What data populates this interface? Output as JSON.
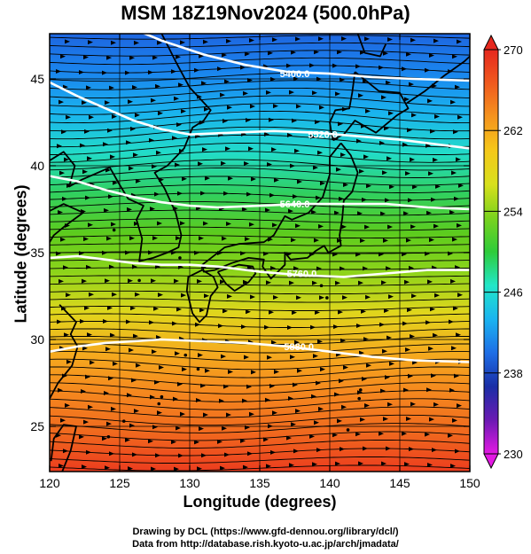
{
  "title": "MSM 18Z19Nov2024 (500.0hPa)",
  "xlabel": "Longitude (degrees)",
  "ylabel": "Latitude  (degrees)",
  "credits": [
    "Drawing by DCL (https://www.gfd-dennou.org/library/dcl/)",
    "Data from http://database.rish.kyoto-u.ac.jp/arch/jmadata/"
  ],
  "map": {
    "lon_range": [
      120,
      150
    ],
    "lat_range": [
      22.4,
      47.6
    ],
    "x_ticks": [
      120,
      125,
      130,
      135,
      140,
      145,
      150
    ],
    "x_tick_labels": [
      "120",
      "125",
      "130",
      "135",
      "140",
      "145",
      "150"
    ],
    "y_ticks": [
      25,
      30,
      35,
      40,
      45
    ],
    "y_tick_labels": [
      "25",
      "30",
      "35",
      "40",
      "45"
    ],
    "colorbar": {
      "min": 230,
      "max": 270,
      "ticks": [
        230,
        238,
        246,
        254,
        262,
        270
      ],
      "tick_labels": [
        "230",
        "238",
        "246",
        "254",
        "262",
        "270"
      ],
      "colors": [
        "#e31ae3",
        "#6b1ab3",
        "#1a2ea6",
        "#1e6ee6",
        "#1ab4f0",
        "#22e6c8",
        "#2ecc3a",
        "#7ad21e",
        "#d8e01c",
        "#f5c81a",
        "#f5941e",
        "#f05a1e",
        "#e6281e"
      ]
    },
    "contours": [
      {
        "label": "5400.0",
        "label_lon": 137.5,
        "label_lat": 45.3,
        "points": [
          [
            125.6,
            48
          ],
          [
            128,
            47.2
          ],
          [
            131,
            46.4
          ],
          [
            134,
            45.8
          ],
          [
            137,
            45.4
          ],
          [
            140,
            45.3
          ],
          [
            143,
            45.1
          ],
          [
            146,
            45.0
          ],
          [
            150,
            44.9
          ]
        ]
      },
      {
        "label": "5520.0",
        "label_lon": 139.5,
        "label_lat": 41.8,
        "points": [
          [
            120,
            44.8
          ],
          [
            122,
            44.0
          ],
          [
            124,
            43.3
          ],
          [
            126,
            42.6
          ],
          [
            128,
            42.1
          ],
          [
            130,
            41.8
          ],
          [
            133,
            41.9
          ],
          [
            136,
            42.0
          ],
          [
            139,
            41.9
          ],
          [
            142,
            41.7
          ],
          [
            145,
            41.5
          ],
          [
            148,
            41.2
          ],
          [
            150,
            41.0
          ]
        ]
      },
      {
        "label": "5640.0",
        "label_lon": 137.5,
        "label_lat": 37.8,
        "points": [
          [
            120,
            39.4
          ],
          [
            122,
            39.1
          ],
          [
            124,
            38.6
          ],
          [
            126,
            38.2
          ],
          [
            128,
            37.9
          ],
          [
            130,
            37.7
          ],
          [
            132,
            37.6
          ],
          [
            135,
            37.7
          ],
          [
            138,
            37.8
          ],
          [
            141,
            37.8
          ],
          [
            144,
            37.8
          ],
          [
            147,
            37.6
          ],
          [
            150,
            37.5
          ]
        ]
      },
      {
        "label": "5760.0",
        "label_lon": 138.0,
        "label_lat": 33.8,
        "points": [
          [
            120,
            34.7
          ],
          [
            122,
            34.8
          ],
          [
            124,
            34.6
          ],
          [
            126,
            34.4
          ],
          [
            128,
            34.3
          ],
          [
            130,
            34.3
          ],
          [
            132,
            34.2
          ],
          [
            135,
            33.9
          ],
          [
            138,
            33.7
          ],
          [
            141,
            33.6
          ],
          [
            144,
            33.8
          ],
          [
            147,
            34.0
          ],
          [
            150,
            34.0
          ]
        ]
      },
      {
        "label": "5880.0",
        "label_lon": 137.8,
        "label_lat": 29.6,
        "points": [
          [
            120,
            29.3
          ],
          [
            122,
            29.6
          ],
          [
            124,
            29.8
          ],
          [
            126,
            29.9
          ],
          [
            128,
            30.0
          ],
          [
            131,
            29.9
          ],
          [
            134,
            29.8
          ],
          [
            137,
            29.6
          ],
          [
            140,
            29.3
          ],
          [
            143,
            29.0
          ],
          [
            146,
            28.8
          ],
          [
            150,
            28.7
          ]
        ]
      }
    ],
    "coastlines": [
      [
        [
          128.0,
          47.6
        ],
        [
          129.0,
          46.0
        ],
        [
          130.0,
          44.5
        ],
        [
          131.5,
          43.2
        ],
        [
          131.0,
          42.6
        ],
        [
          130.2,
          42.2
        ],
        [
          129.6,
          41.0
        ],
        [
          128.4,
          40.0
        ],
        [
          127.5,
          39.6
        ],
        [
          128.2,
          38.7
        ],
        [
          129.0,
          37.3
        ],
        [
          129.4,
          36.0
        ],
        [
          129.2,
          35.3
        ],
        [
          128.4,
          35.0
        ],
        [
          127.4,
          34.7
        ],
        [
          126.4,
          34.5
        ],
        [
          126.6,
          35.8
        ],
        [
          126.2,
          36.9
        ],
        [
          126.7,
          37.7
        ],
        [
          125.6,
          38.1
        ],
        [
          125.0,
          38.9
        ],
        [
          124.3,
          39.9
        ],
        [
          122.3,
          39.2
        ],
        [
          121.4,
          38.8
        ],
        [
          121.8,
          40.0
        ],
        [
          121.0,
          40.8
        ],
        [
          120.0,
          40.3
        ]
      ],
      [
        [
          120.0,
          37.4
        ],
        [
          121.0,
          37.8
        ],
        [
          122.4,
          37.3
        ],
        [
          121.2,
          36.6
        ],
        [
          120.3,
          36.0
        ],
        [
          120.0,
          35.6
        ]
      ],
      [
        [
          120.7,
          32.0
        ],
        [
          121.9,
          31.0
        ],
        [
          121.5,
          30.3
        ],
        [
          122.0,
          29.6
        ],
        [
          121.6,
          28.5
        ],
        [
          120.6,
          27.5
        ],
        [
          120.0,
          26.6
        ]
      ],
      [
        [
          120.1,
          23.0
        ],
        [
          120.3,
          24.3
        ],
        [
          121.0,
          25.1
        ],
        [
          121.9,
          25.0
        ],
        [
          121.5,
          23.6
        ],
        [
          120.9,
          22.4
        ]
      ],
      [
        [
          141.8,
          45.4
        ],
        [
          141.6,
          44.2
        ],
        [
          141.4,
          43.3
        ],
        [
          140.4,
          43.2
        ],
        [
          140.0,
          42.5
        ],
        [
          140.2,
          41.5
        ],
        [
          141.0,
          41.8
        ],
        [
          141.8,
          42.6
        ],
        [
          143.3,
          41.9
        ],
        [
          144.8,
          42.9
        ],
        [
          145.6,
          43.3
        ],
        [
          145.0,
          44.2
        ],
        [
          143.5,
          44.3
        ],
        [
          141.8,
          45.4
        ]
      ],
      [
        [
          140.8,
          41.3
        ],
        [
          141.5,
          40.6
        ],
        [
          142.0,
          39.6
        ],
        [
          141.6,
          38.5
        ],
        [
          141.0,
          38.0
        ],
        [
          140.9,
          37.0
        ],
        [
          140.7,
          36.0
        ],
        [
          140.8,
          35.4
        ],
        [
          139.9,
          35.0
        ],
        [
          139.6,
          35.4
        ],
        [
          139.0,
          35.1
        ],
        [
          138.4,
          34.7
        ],
        [
          137.2,
          34.6
        ],
        [
          136.8,
          35.0
        ],
        [
          136.8,
          34.3
        ],
        [
          135.8,
          33.5
        ],
        [
          135.2,
          34.2
        ],
        [
          135.3,
          34.6
        ],
        [
          134.2,
          34.7
        ],
        [
          133.0,
          34.4
        ],
        [
          131.8,
          34.0
        ],
        [
          131.0,
          33.9
        ],
        [
          130.9,
          34.3
        ],
        [
          132.5,
          35.3
        ],
        [
          133.5,
          35.5
        ],
        [
          135.3,
          35.6
        ],
        [
          136.0,
          36.0
        ],
        [
          136.8,
          37.1
        ],
        [
          137.3,
          36.9
        ],
        [
          138.5,
          37.3
        ],
        [
          139.5,
          38.2
        ],
        [
          140.0,
          39.5
        ],
        [
          140.0,
          40.5
        ],
        [
          140.8,
          41.3
        ]
      ],
      [
        [
          130.9,
          34.0
        ],
        [
          129.9,
          33.6
        ],
        [
          129.8,
          32.8
        ],
        [
          130.2,
          31.5
        ],
        [
          130.7,
          31.0
        ],
        [
          131.2,
          31.4
        ],
        [
          131.5,
          32.5
        ],
        [
          132.0,
          33.0
        ],
        [
          131.7,
          33.6
        ],
        [
          130.9,
          34.0
        ]
      ],
      [
        [
          132.0,
          33.9
        ],
        [
          132.6,
          33.2
        ],
        [
          133.2,
          32.8
        ],
        [
          134.2,
          33.3
        ],
        [
          134.7,
          33.8
        ],
        [
          134.5,
          34.2
        ],
        [
          133.5,
          34.3
        ],
        [
          132.0,
          33.9
        ]
      ],
      [
        [
          142.0,
          47.6
        ],
        [
          142.5,
          46.5
        ],
        [
          143.6,
          46.3
        ],
        [
          144.0,
          47.0
        ]
      ],
      [
        [
          145.5,
          43.6
        ],
        [
          146.8,
          44.3
        ],
        [
          148.2,
          45.2
        ],
        [
          149.6,
          46.0
        ],
        [
          150.0,
          46.3
        ]
      ]
    ],
    "islands": [
      [
        128.9,
        37.5
      ],
      [
        124.6,
        36.3
      ],
      [
        126.4,
        33.4
      ],
      [
        129.3,
        34.7
      ],
      [
        130.6,
        28.3
      ],
      [
        128.0,
        26.7
      ],
      [
        127.8,
        26.3
      ],
      [
        124.2,
        24.4
      ],
      [
        129.7,
        29.1
      ],
      [
        139.4,
        33.1
      ],
      [
        139.8,
        32.4
      ],
      [
        142.1,
        26.6
      ],
      [
        142.2,
        27.1
      ],
      [
        141.3,
        24.8
      ],
      [
        125.3,
        25.3
      ]
    ],
    "grid_lons": [
      125,
      130,
      135,
      140,
      145
    ],
    "grid_lats": [
      25,
      30,
      35,
      40,
      45
    ]
  }
}
